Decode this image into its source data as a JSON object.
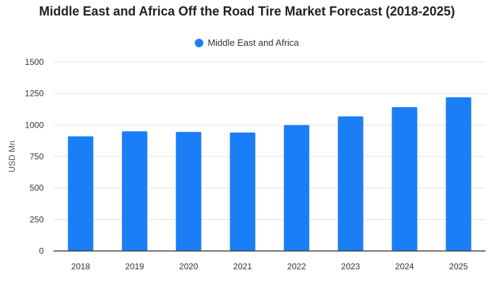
{
  "colors": {
    "bar": "#1a7ef7",
    "grid": "#e3e3e3",
    "axis": "#444444",
    "text": "#333333"
  },
  "chart_data": {
    "type": "bar",
    "title": "Middle East and Africa Off the Road Tire Market Forecast (2018-2025)",
    "xlabel": "",
    "ylabel": "USD Mn",
    "categories": [
      "2018",
      "2019",
      "2020",
      "2021",
      "2022",
      "2023",
      "2024",
      "2025"
    ],
    "series": [
      {
        "name": "Middle East and Africa",
        "values": [
          910,
          950,
          945,
          940,
          1000,
          1068,
          1142,
          1220
        ]
      }
    ],
    "ylim": [
      0,
      1500
    ],
    "yticks": [
      0,
      250,
      500,
      750,
      1000,
      1250,
      1500
    ],
    "grid": true,
    "legend_position": "top-center"
  }
}
